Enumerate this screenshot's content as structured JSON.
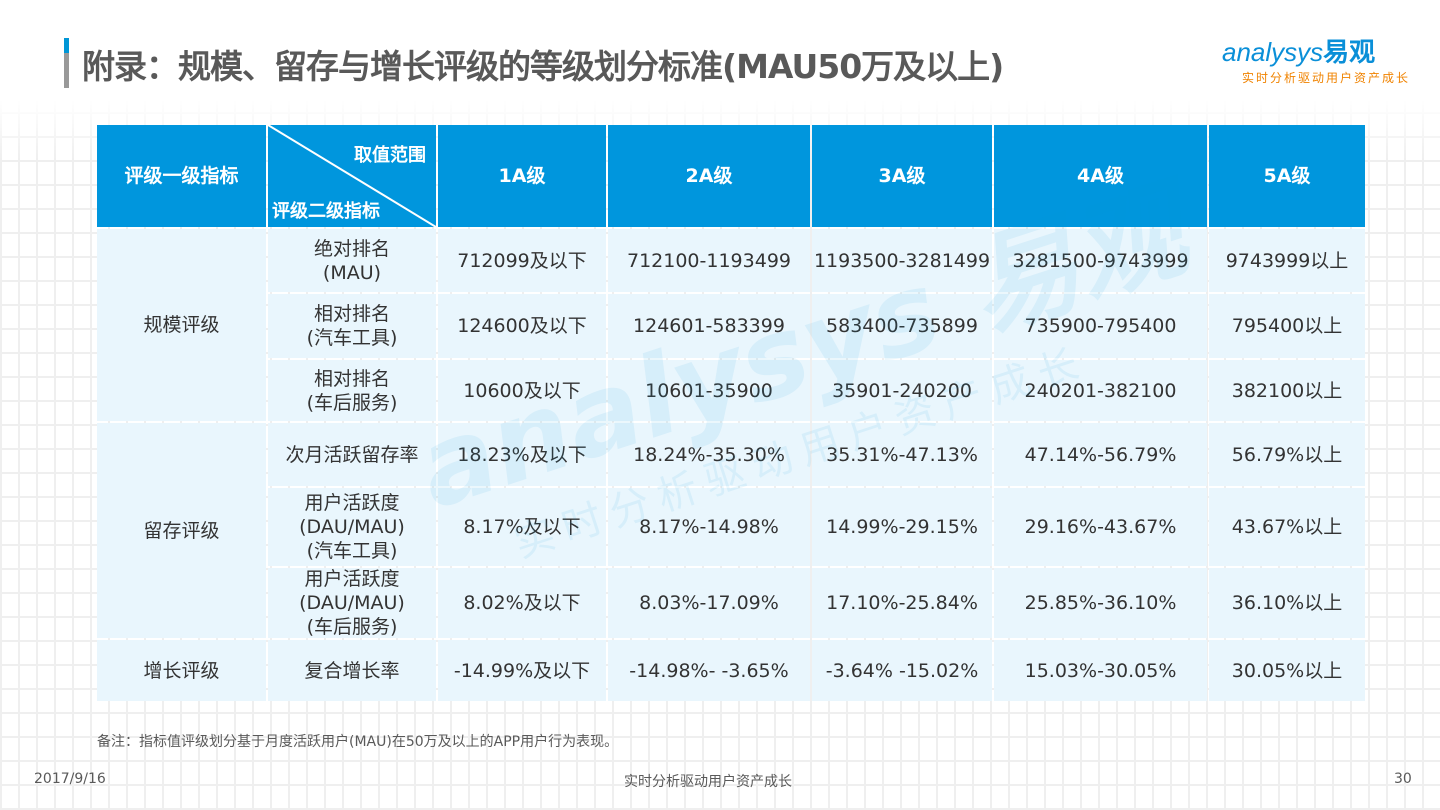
{
  "title": "附录：规模、留存与增长评级的等级划分标准(MAU50万及以上)",
  "logo": {
    "en": "analysys",
    "cn": "易观",
    "slogan": "实时分析驱动用户资产成长"
  },
  "colors": {
    "header": "#0096dd",
    "cell": "#e9f6fd",
    "accent": "#0a8fd8",
    "slogan": "#f08300"
  },
  "table": {
    "corner_first": "评级一级指标",
    "corner_top": "取值范围",
    "corner_bottom": "评级二级指标",
    "levels": [
      "1A级",
      "2A级",
      "3A级",
      "4A级",
      "5A级"
    ],
    "groups": [
      {
        "name": "规模评级",
        "rows": [
          {
            "metric": "绝对排名\n(MAU)",
            "values": [
              "712099及以下",
              "712100-1193499",
              "1193500-3281499",
              "3281500-9743999",
              "9743999以上"
            ]
          },
          {
            "metric": "相对排名\n(汽车工具)",
            "values": [
              "124600及以下",
              "124601-583399",
              "583400-735899",
              "735900-795400",
              "795400以上"
            ]
          },
          {
            "metric": "相对排名\n(车后服务)",
            "values": [
              "10600及以下",
              "10601-35900",
              "35901-240200",
              "240201-382100",
              "382100以上"
            ]
          }
        ]
      },
      {
        "name": "留存评级",
        "rows": [
          {
            "metric": "次月活跃留存率",
            "values": [
              "18.23%及以下",
              "18.24%-35.30%",
              "35.31%-47.13%",
              "47.14%-56.79%",
              "56.79%以上"
            ]
          },
          {
            "metric": "用户活跃度\n(DAU/MAU)\n(汽车工具)",
            "values": [
              "8.17%及以下",
              "8.17%-14.98%",
              "14.99%-29.15%",
              "29.16%-43.67%",
              "43.67%以上"
            ]
          },
          {
            "metric": "用户活跃度\n(DAU/MAU)\n(车后服务)",
            "values": [
              "8.02%及以下",
              "8.03%-17.09%",
              "17.10%-25.84%",
              "25.85%-36.10%",
              "36.10%以上"
            ]
          }
        ]
      },
      {
        "name": "增长评级",
        "rows": [
          {
            "metric": "复合增长率",
            "values": [
              "-14.99%及以下",
              "-14.98%- -3.65%",
              "-3.64% -15.02%",
              "15.03%-30.05%",
              "30.05%以上"
            ]
          }
        ]
      }
    ]
  },
  "note": "备注：指标值评级划分基于月度活跃用户(MAU)在50万及以上的APP用户行为表现。",
  "footer": {
    "date": "2017/9/16",
    "center": "实时分析驱动用户资产成长",
    "page": "30"
  }
}
